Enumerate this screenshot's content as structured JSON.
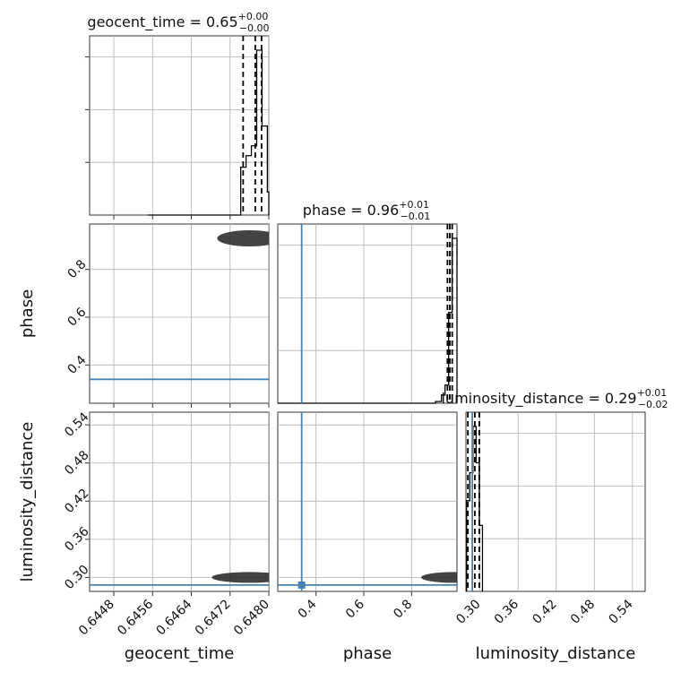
{
  "chart_data": {
    "type": "corner",
    "params": [
      "geocent_time",
      "phase",
      "luminosity_distance"
    ],
    "axis_labels": {
      "geocent_time": "geocent_time",
      "phase": "phase",
      "luminosity_distance": "luminosity_distance"
    },
    "titles": [
      {
        "param": "geocent_time",
        "text": "geocent_time = 0.65",
        "plus": "+0.00",
        "minus": "−0.00"
      },
      {
        "param": "phase",
        "text": "phase = 0.96",
        "plus": "+0.01",
        "minus": "−0.01"
      },
      {
        "param": "luminosity_distance",
        "text": "luminosity_distance = 0.29",
        "plus": "+0.01",
        "minus": "−0.02"
      }
    ],
    "ranges": {
      "geocent_time": [
        0.6443,
        0.648
      ],
      "phase": [
        0.24,
        0.99
      ],
      "luminosity_distance": [
        0.278,
        0.56
      ]
    },
    "ticks": {
      "geocent_time": [
        0.6448,
        0.6456,
        0.6464,
        0.6472,
        0.648
      ],
      "phase": [
        0.4,
        0.6,
        0.8
      ],
      "luminosity_distance": [
        0.3,
        0.36,
        0.42,
        0.48,
        0.54
      ]
    },
    "tick_labels": {
      "geocent_time": [
        "0.6448",
        "0.6456",
        "0.6464",
        "0.6472",
        "0.6480"
      ],
      "phase": [
        "0.4",
        "0.6",
        "0.8"
      ],
      "luminosity_distance": [
        "0.30",
        "0.36",
        "0.42",
        "0.48",
        "0.54"
      ]
    },
    "truths": {
      "geocent_time": null,
      "phase": 0.34,
      "luminosity_distance": 0.288
    },
    "quantiles": {
      "geocent_time": [
        0.64747,
        0.64772,
        0.64785
      ],
      "phase": [
        0.95,
        0.96,
        0.97
      ],
      "luminosity_distance": [
        0.281,
        0.292,
        0.299
      ]
    },
    "hist1d": {
      "geocent_time": {
        "edges": [
          0.6455,
          0.6463,
          0.64742,
          0.64753,
          0.64764,
          0.64775,
          0.64786,
          0.64797,
          0.64808,
          0.6482
        ],
        "counts": [
          0,
          0,
          0.29,
          0.36,
          0.42,
          1.0,
          0.54,
          0.14,
          0.04
        ]
      },
      "phase": {
        "edges": [
          0.24,
          0.9,
          0.925,
          0.94,
          0.955,
          0.97,
          0.99
        ],
        "counts": [
          0,
          0.01,
          0.05,
          0.11,
          0.55,
          1.0
        ]
      },
      "luminosity_distance": {
        "edges": [
          0.279,
          0.284,
          0.289,
          0.294,
          0.299,
          0.304
        ],
        "counts": [
          0.55,
          0.72,
          1.0,
          0.78,
          0.4
        ]
      }
    },
    "hist1d_scale": {
      "geocent_time": 1.0,
      "phase": 1.0,
      "luminosity_distance": 1.0
    },
    "grid": true,
    "color_truth": "#4682b4",
    "color_hist": "#000000"
  }
}
